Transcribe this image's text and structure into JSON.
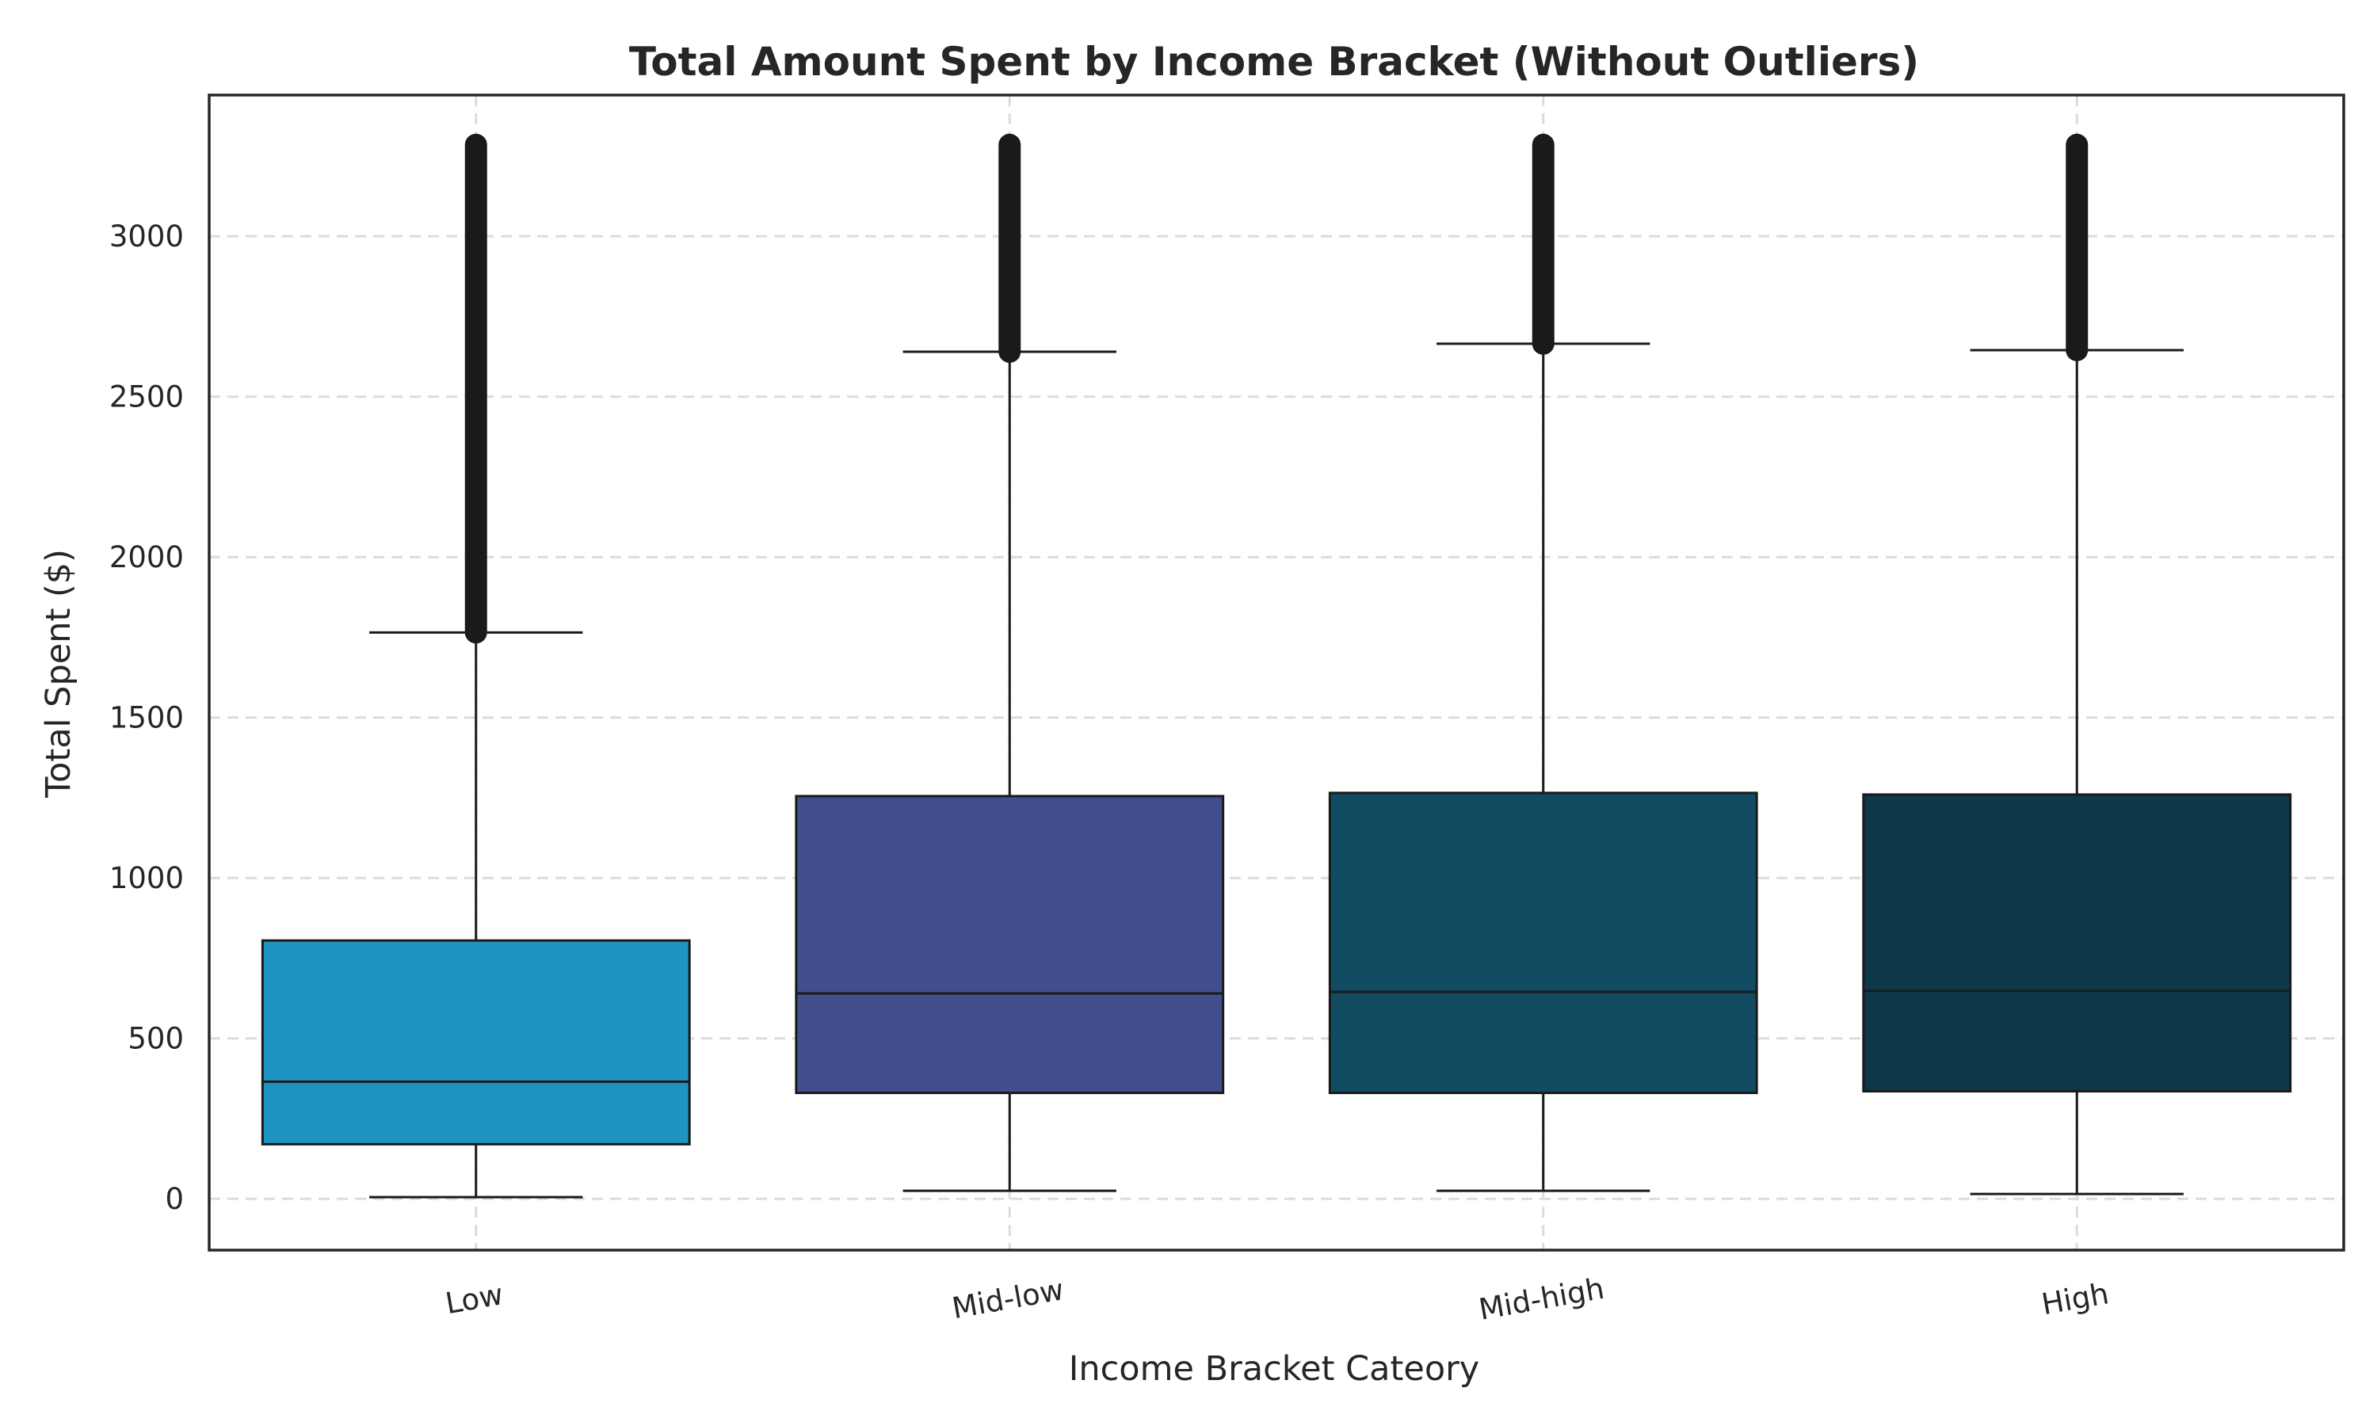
{
  "chart_data": {
    "type": "box",
    "title": "Total Amount Spent by Income Bracket (Without Outliers)",
    "xlabel": "Income Bracket Cateory",
    "ylabel": "Total Spent ($)",
    "ylim": [
      -160,
      3440
    ],
    "yticks": [
      0,
      500,
      1000,
      1500,
      2000,
      2500,
      3000
    ],
    "grid": true,
    "categories": [
      "Low",
      "Mid-low",
      "Mid-high",
      "High"
    ],
    "colors": [
      "#1f93c1",
      "#434f8c",
      "#124c62",
      "#0f374a"
    ],
    "boxes": [
      {
        "category": "Low",
        "whisker_low": 5,
        "q1": 170,
        "median": 365,
        "q3": 805,
        "whisker_high": 1765,
        "outliers_min": 1765,
        "outliers_max": 3285
      },
      {
        "category": "Mid-low",
        "whisker_low": 25,
        "q1": 330,
        "median": 640,
        "q3": 1255,
        "whisker_high": 2640,
        "outliers_min": 2640,
        "outliers_max": 3285
      },
      {
        "category": "Mid-high",
        "whisker_low": 25,
        "q1": 330,
        "median": 645,
        "q3": 1265,
        "whisker_high": 2665,
        "outliers_min": 2665,
        "outliers_max": 3285
      },
      {
        "category": "High",
        "whisker_low": 15,
        "q1": 335,
        "median": 648,
        "q3": 1260,
        "whisker_high": 2645,
        "outliers_min": 2645,
        "outliers_max": 3285
      }
    ]
  }
}
